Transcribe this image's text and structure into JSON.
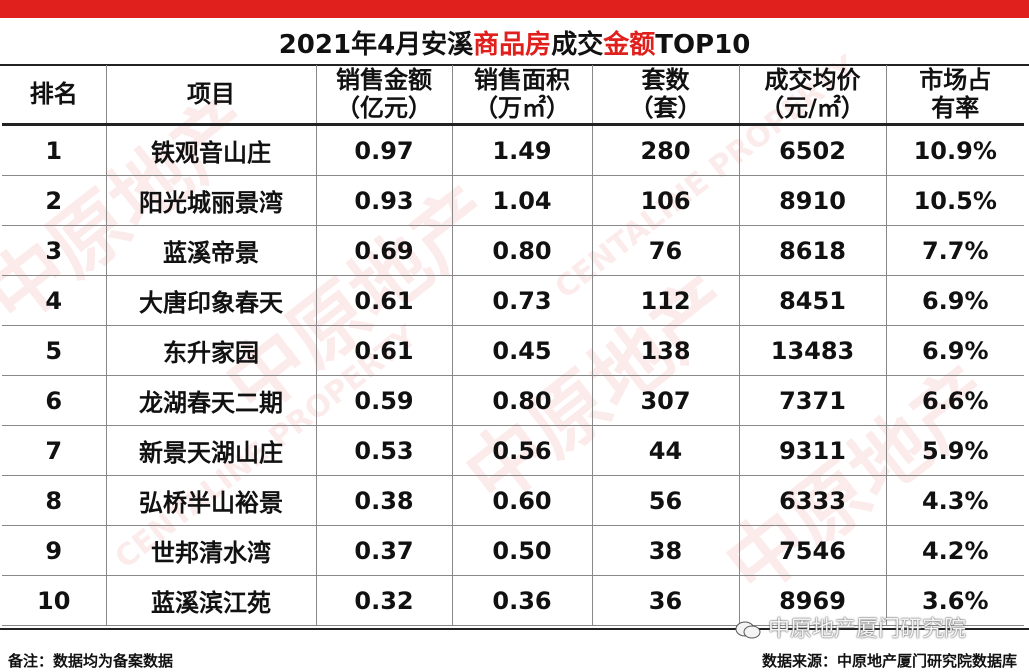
{
  "title": {
    "part1": "2021年4月安溪",
    "part2": "商品房",
    "part3": "成交",
    "part4": "金额",
    "part5": "TOP10"
  },
  "headers": [
    {
      "line1": "排名",
      "line2": ""
    },
    {
      "line1": "项目",
      "line2": ""
    },
    {
      "line1": "销售金额",
      "line2": "（亿元）"
    },
    {
      "line1": "销售面积",
      "line2": "（万㎡）"
    },
    {
      "line1": "套数",
      "line2": "（套）"
    },
    {
      "line1": "成交均价",
      "line2": "（元/㎡）"
    },
    {
      "line1": "市场占",
      "line2": "有率"
    }
  ],
  "rows": [
    [
      "1",
      "铁观音山庄",
      "0.97",
      "1.49",
      "280",
      "6502",
      "10.9%"
    ],
    [
      "2",
      "阳光城丽景湾",
      "0.93",
      "1.04",
      "106",
      "8910",
      "10.5%"
    ],
    [
      "3",
      "蓝溪帝景",
      "0.69",
      "0.80",
      "76",
      "8618",
      "7.7%"
    ],
    [
      "4",
      "大唐印象春天",
      "0.61",
      "0.73",
      "112",
      "8451",
      "6.9%"
    ],
    [
      "5",
      "东升家园",
      "0.61",
      "0.45",
      "138",
      "13483",
      "6.9%"
    ],
    [
      "6",
      "龙湖春天二期",
      "0.59",
      "0.80",
      "307",
      "7371",
      "6.6%"
    ],
    [
      "7",
      "新景天湖山庄",
      "0.53",
      "0.56",
      "44",
      "9311",
      "5.9%"
    ],
    [
      "8",
      "弘桥半山裕景",
      "0.38",
      "0.60",
      "56",
      "6333",
      "4.3%"
    ],
    [
      "9",
      "世邦清水湾",
      "0.37",
      "0.50",
      "38",
      "7546",
      "4.2%"
    ],
    [
      "10",
      "蓝溪滨江苑",
      "0.32",
      "0.36",
      "36",
      "8969",
      "3.6%"
    ]
  ],
  "note": "备注：数据均为备案数据",
  "source": "数据来源：中原地产厦门研究院数据库",
  "wechat_label": "中原地产厦门研究院",
  "watermark_text": "中原地产",
  "watermark_sub": "CENTALINE PROPERTY",
  "colors": {
    "accent": "#e0201c",
    "text": "#111111"
  }
}
